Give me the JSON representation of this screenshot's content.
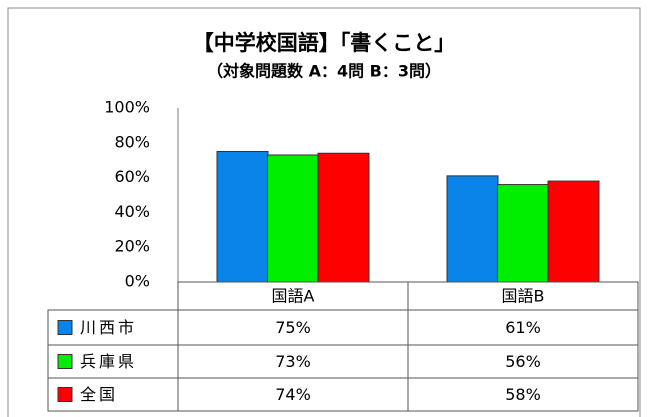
{
  "chart_data": {
    "type": "bar",
    "title": "【中学校国語】「書くこと」",
    "subtitle": "（対象問題数 A：4問 B：3問）",
    "categories": [
      "国語A",
      "国語B"
    ],
    "series": [
      {
        "name": "川西市",
        "color": "#0a84e8",
        "values": [
          75,
          61
        ],
        "value_labels": [
          "75%",
          "61%"
        ]
      },
      {
        "name": "兵庫県",
        "color": "#00ee00",
        "values": [
          73,
          56
        ],
        "value_labels": [
          "73%",
          "56%"
        ]
      },
      {
        "name": "全国",
        "color": "#ff0000",
        "values": [
          74,
          58
        ],
        "value_labels": [
          "74%",
          "58%"
        ]
      }
    ],
    "ylim": [
      0,
      100
    ],
    "yticks": [
      {
        "value": 0,
        "label": "0%"
      },
      {
        "value": 20,
        "label": "20%"
      },
      {
        "value": 40,
        "label": "40%"
      },
      {
        "value": 60,
        "label": "60%"
      },
      {
        "value": 80,
        "label": "80%"
      },
      {
        "value": 100,
        "label": "100%"
      }
    ],
    "grid": false
  }
}
